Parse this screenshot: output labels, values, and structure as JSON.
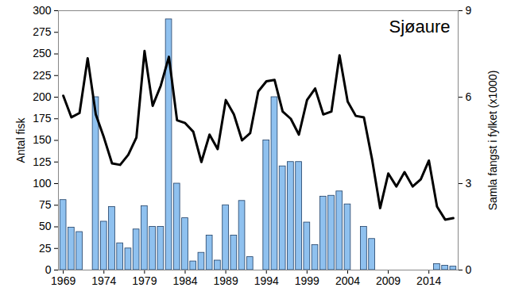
{
  "chart_data": {
    "type": "bar",
    "title": "Sjøaure",
    "ylabel": "Antal fisk",
    "y2label": "Samla fangst i fylket (x1000)",
    "x": [
      1969,
      1970,
      1971,
      1972,
      1973,
      1974,
      1975,
      1976,
      1977,
      1978,
      1979,
      1980,
      1981,
      1982,
      1983,
      1984,
      1985,
      1986,
      1987,
      1988,
      1989,
      1990,
      1991,
      1992,
      1993,
      1994,
      1995,
      1996,
      1997,
      1998,
      1999,
      2000,
      2001,
      2002,
      2003,
      2004,
      2005,
      2006,
      2007,
      2008,
      2009,
      2010,
      2011,
      2012,
      2013,
      2014,
      2015,
      2016,
      2017
    ],
    "series": [
      {
        "type": "bar",
        "color": "#8fc1ef",
        "values": [
          81,
          49,
          44,
          null,
          200,
          56,
          73,
          31,
          25,
          47,
          74,
          50,
          50,
          290,
          100,
          60,
          10,
          20,
          40,
          11,
          75,
          40,
          80,
          15,
          null,
          150,
          200,
          120,
          125,
          125,
          55,
          29,
          85,
          86,
          91,
          76,
          null,
          50,
          36,
          null,
          null,
          null,
          null,
          null,
          null,
          null,
          7,
          5,
          4
        ]
      },
      {
        "type": "line",
        "color": "#000000",
        "axis": "y2",
        "values": [
          6.05,
          5.3,
          5.45,
          7.35,
          5.4,
          4.6,
          3.7,
          3.65,
          4.0,
          4.6,
          7.6,
          5.7,
          6.4,
          7.4,
          5.2,
          5.1,
          4.8,
          3.75,
          4.7,
          4.2,
          5.9,
          5.4,
          4.5,
          4.75,
          6.2,
          6.55,
          6.6,
          5.5,
          5.25,
          4.7,
          5.9,
          6.3,
          5.4,
          5.5,
          7.45,
          5.85,
          5.35,
          5.3,
          3.85,
          2.15,
          3.35,
          2.9,
          3.4,
          2.9,
          3.15,
          3.8,
          2.2,
          1.75,
          1.8
        ]
      }
    ],
    "xlim": [
      1968.4,
      2017.6
    ],
    "xticks": [
      1969,
      1974,
      1979,
      1984,
      1989,
      1994,
      1999,
      2004,
      2009,
      2014
    ],
    "ylim": [
      0,
      300
    ],
    "yticks": [
      0,
      25,
      50,
      75,
      100,
      125,
      150,
      175,
      200,
      225,
      250,
      275,
      300
    ],
    "y2lim": [
      0,
      9
    ],
    "y2ticks": [
      0,
      3,
      6,
      9
    ]
  }
}
